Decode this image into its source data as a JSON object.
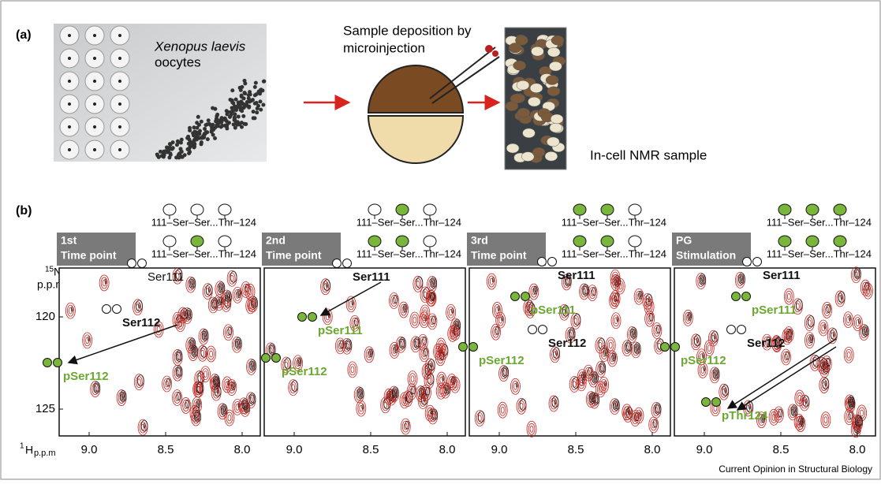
{
  "panel_a": {
    "label": "(a)",
    "species": "Xenopus laevis",
    "cell_word": "oocytes",
    "deposition": [
      "Sample deposition by",
      "microinjection"
    ],
    "sample": "In-cell NMR sample"
  },
  "panel_b": {
    "label": "(b)",
    "y_axis": {
      "mass": "15",
      "element": "N",
      "unit": "p.p.m",
      "ticks": [
        "120",
        "125"
      ]
    },
    "x_axis": {
      "mass": "1",
      "element": "H",
      "unit": "p.p.m",
      "ticks": [
        "9.0",
        "8.5",
        "8.0"
      ]
    },
    "panels": [
      {
        "title": [
          "1st",
          "Time point"
        ],
        "states": [
          {
            "sequence": "111–Ser–Ser...Thr–124",
            "phospho": [
              false,
              false,
              false
            ]
          },
          {
            "sequence": "111–Ser–Ser...Thr–124",
            "phospho": [
              false,
              true,
              false
            ]
          }
        ],
        "peaks": [
          {
            "text": "Ser111",
            "color": "black",
            "bold": false
          },
          {
            "text": "Ser112",
            "color": "black",
            "bold": true
          },
          {
            "text": "pSer112",
            "color": "green",
            "bold": true
          }
        ]
      },
      {
        "title": [
          "2nd",
          "Time point"
        ],
        "states": [
          {
            "sequence": "111–Ser–Ser...Thr–124",
            "phospho": [
              false,
              true,
              false
            ]
          },
          {
            "sequence": "111–Ser–Ser...Thr–124",
            "phospho": [
              true,
              true,
              false
            ]
          }
        ],
        "peaks": [
          {
            "text": "Ser111",
            "color": "black",
            "bold": true
          },
          {
            "text": "pSer111",
            "color": "green",
            "bold": true
          },
          {
            "text": "pSer112",
            "color": "green",
            "bold": true
          }
        ]
      },
      {
        "title": [
          "3rd",
          "Time point"
        ],
        "states": [
          {
            "sequence": "111–Ser–Ser...Thr–124",
            "phospho": [
              true,
              true,
              false
            ]
          },
          {
            "sequence": "111–Ser–Ser...Thr–124",
            "phospho": [
              true,
              true,
              false
            ]
          }
        ],
        "peaks": [
          {
            "text": "Ser111",
            "color": "black",
            "bold": true
          },
          {
            "text": "pSer111",
            "color": "green",
            "bold": true
          },
          {
            "text": "Ser112",
            "color": "black",
            "bold": true
          },
          {
            "text": "pSer112",
            "color": "green",
            "bold": true
          }
        ]
      },
      {
        "title": [
          "PG",
          "Stimulation"
        ],
        "states": [
          {
            "sequence": "111–Ser–Ser...Thr–124",
            "phospho": [
              true,
              true,
              true
            ]
          },
          {
            "sequence": "111–Ser–Ser...Thr–124",
            "phospho": [
              true,
              true,
              true
            ]
          }
        ],
        "peaks": [
          {
            "text": "Ser111",
            "color": "black",
            "bold": true
          },
          {
            "text": "pSer111",
            "color": "green",
            "bold": true
          },
          {
            "text": "Ser112",
            "color": "black",
            "bold": true
          },
          {
            "text": "pSer112",
            "color": "green",
            "bold": true
          },
          {
            "text": "pThr124",
            "color": "green",
            "bold": true
          }
        ]
      }
    ]
  },
  "footer": "Current Opinion in Structural Biology"
}
